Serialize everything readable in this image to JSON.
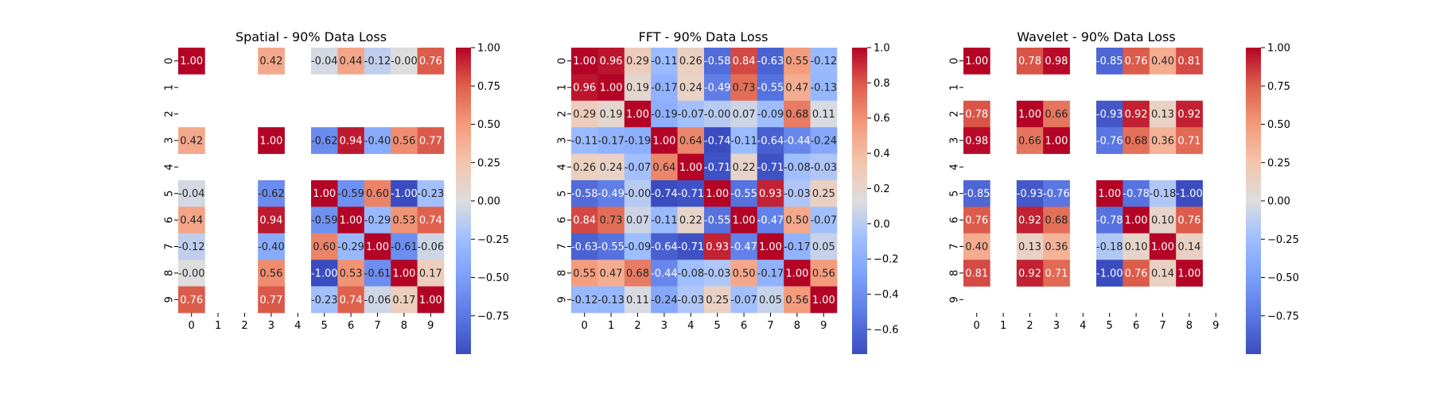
{
  "chart_data": [
    {
      "type": "heatmap",
      "title": "Spatial - 90% Data Loss",
      "x_ticks": [
        "0",
        "1",
        "2",
        "3",
        "4",
        "5",
        "6",
        "7",
        "8",
        "9"
      ],
      "y_ticks": [
        "0",
        "1",
        "2",
        "3",
        "4",
        "5",
        "6",
        "7",
        "8",
        "9"
      ],
      "values": [
        [
          1.0,
          null,
          null,
          0.42,
          null,
          -0.04,
          0.44,
          -0.12,
          -0.0,
          0.76
        ],
        [
          null,
          null,
          null,
          null,
          null,
          null,
          null,
          null,
          null,
          null
        ],
        [
          null,
          null,
          null,
          null,
          null,
          null,
          null,
          null,
          null,
          null
        ],
        [
          0.42,
          null,
          null,
          1.0,
          null,
          -0.62,
          0.94,
          -0.4,
          0.56,
          0.77
        ],
        [
          null,
          null,
          null,
          null,
          null,
          null,
          null,
          null,
          null,
          null
        ],
        [
          -0.04,
          null,
          null,
          -0.62,
          null,
          1.0,
          -0.59,
          0.6,
          -1.0,
          -0.23
        ],
        [
          0.44,
          null,
          null,
          0.94,
          null,
          -0.59,
          1.0,
          -0.29,
          0.53,
          0.74
        ],
        [
          -0.12,
          null,
          null,
          -0.4,
          null,
          0.6,
          -0.29,
          1.0,
          -0.61,
          -0.06
        ],
        [
          -0.0,
          null,
          null,
          0.56,
          null,
          -1.0,
          0.53,
          -0.61,
          1.0,
          0.17
        ],
        [
          0.76,
          null,
          null,
          0.77,
          null,
          -0.23,
          0.74,
          -0.06,
          0.17,
          1.0
        ]
      ],
      "vmin": -1.0,
      "vmax": 1.0,
      "colorbar_ticks": [
        1.0,
        0.75,
        0.5,
        0.25,
        0.0,
        -0.25,
        -0.5,
        -0.75
      ],
      "colorbar_labels": [
        "1.00",
        "0.75",
        "0.50",
        "0.25",
        "0.00",
        "−0.25",
        "−0.50",
        "−0.75"
      ],
      "colormap": "coolwarm",
      "annotate": true,
      "grid": false
    },
    {
      "type": "heatmap",
      "title": "FFT - 90% Data Loss",
      "x_ticks": [
        "0",
        "1",
        "2",
        "3",
        "4",
        "5",
        "6",
        "7",
        "8",
        "9"
      ],
      "y_ticks": [
        "0",
        "1",
        "2",
        "3",
        "4",
        "5",
        "6",
        "7",
        "8",
        "9"
      ],
      "values": [
        [
          1.0,
          0.96,
          0.29,
          -0.11,
          0.26,
          -0.58,
          0.84,
          -0.63,
          0.55,
          -0.12
        ],
        [
          0.96,
          1.0,
          0.19,
          -0.17,
          0.24,
          -0.49,
          0.73,
          -0.55,
          0.47,
          -0.13
        ],
        [
          0.29,
          0.19,
          1.0,
          -0.19,
          -0.07,
          -0.0,
          0.07,
          -0.09,
          0.68,
          0.11
        ],
        [
          -0.11,
          -0.17,
          -0.19,
          1.0,
          0.64,
          -0.74,
          -0.11,
          -0.64,
          -0.44,
          -0.24
        ],
        [
          0.26,
          0.24,
          -0.07,
          0.64,
          1.0,
          -0.71,
          0.22,
          -0.71,
          -0.08,
          -0.03
        ],
        [
          -0.58,
          -0.49,
          -0.0,
          -0.74,
          -0.71,
          1.0,
          -0.55,
          0.93,
          -0.03,
          0.25
        ],
        [
          0.84,
          0.73,
          0.07,
          -0.11,
          0.22,
          -0.55,
          1.0,
          -0.47,
          0.5,
          -0.07
        ],
        [
          -0.63,
          -0.55,
          -0.09,
          -0.64,
          -0.71,
          0.93,
          -0.47,
          1.0,
          -0.17,
          0.05
        ],
        [
          0.55,
          0.47,
          0.68,
          -0.44,
          -0.08,
          -0.03,
          0.5,
          -0.17,
          1.0,
          0.56
        ],
        [
          -0.12,
          -0.13,
          0.11,
          -0.24,
          -0.03,
          0.25,
          -0.07,
          0.05,
          0.56,
          1.0
        ]
      ],
      "vmin": -0.74,
      "vmax": 1.0,
      "colorbar_ticks": [
        1.0,
        0.8,
        0.6,
        0.4,
        0.2,
        0.0,
        -0.2,
        -0.4,
        -0.6
      ],
      "colorbar_labels": [
        "1.0",
        "0.8",
        "0.6",
        "0.4",
        "0.2",
        "0.0",
        "−0.2",
        "−0.4",
        "−0.6"
      ],
      "colormap": "coolwarm",
      "annotate": true,
      "grid": false
    },
    {
      "type": "heatmap",
      "title": "Wavelet - 90% Data Loss",
      "x_ticks": [
        "0",
        "1",
        "2",
        "3",
        "4",
        "5",
        "6",
        "7",
        "8",
        "9"
      ],
      "y_ticks": [
        "0",
        "1",
        "2",
        "3",
        "4",
        "5",
        "6",
        "7",
        "8",
        "9"
      ],
      "values": [
        [
          1.0,
          null,
          0.78,
          0.98,
          null,
          -0.85,
          0.76,
          0.4,
          0.81,
          null
        ],
        [
          null,
          null,
          null,
          null,
          null,
          null,
          null,
          null,
          null,
          null
        ],
        [
          0.78,
          null,
          1.0,
          0.66,
          null,
          -0.93,
          0.92,
          0.13,
          0.92,
          null
        ],
        [
          0.98,
          null,
          0.66,
          1.0,
          null,
          -0.76,
          0.68,
          0.36,
          0.71,
          null
        ],
        [
          null,
          null,
          null,
          null,
          null,
          null,
          null,
          null,
          null,
          null
        ],
        [
          -0.85,
          null,
          -0.93,
          -0.76,
          null,
          1.0,
          -0.78,
          -0.18,
          -1.0,
          null
        ],
        [
          0.76,
          null,
          0.92,
          0.68,
          null,
          -0.78,
          1.0,
          0.1,
          0.76,
          null
        ],
        [
          0.4,
          null,
          0.13,
          0.36,
          null,
          -0.18,
          0.1,
          1.0,
          0.14,
          null
        ],
        [
          0.81,
          null,
          0.92,
          0.71,
          null,
          -1.0,
          0.76,
          0.14,
          1.0,
          null
        ],
        [
          null,
          null,
          null,
          null,
          null,
          null,
          null,
          null,
          null,
          null
        ]
      ],
      "vmin": -1.0,
      "vmax": 1.0,
      "colorbar_ticks": [
        1.0,
        0.75,
        0.5,
        0.25,
        0.0,
        -0.25,
        -0.5,
        -0.75
      ],
      "colorbar_labels": [
        "1.00",
        "0.75",
        "0.50",
        "0.25",
        "0.00",
        "−0.25",
        "−0.50",
        "−0.75"
      ],
      "colormap": "coolwarm",
      "annotate": true,
      "grid": false
    }
  ]
}
